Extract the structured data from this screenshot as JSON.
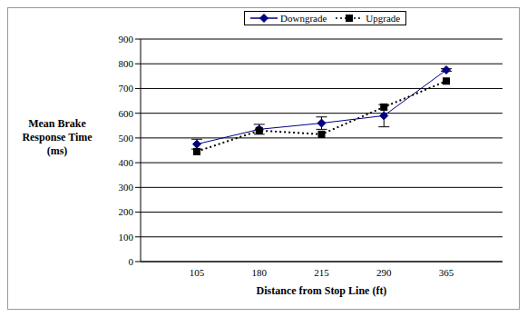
{
  "chart_data": {
    "type": "line",
    "x_label": "Distance from Stop Line (ft)",
    "y_label": "Mean Brake Response Time (ms)",
    "categories": [
      "105",
      "180",
      "215",
      "290",
      "365"
    ],
    "series": [
      {
        "name": "Downgrade",
        "color": "#000080",
        "marker": "diamond",
        "line_style": "solid",
        "values": [
          475,
          535,
          560,
          590,
          775
        ],
        "errors": [
          20,
          20,
          25,
          45,
          5
        ]
      },
      {
        "name": "Upgrade",
        "color": "#000000",
        "marker": "square",
        "line_style": "dotted",
        "values": [
          445,
          530,
          515,
          625,
          730
        ]
      }
    ],
    "ylim": [
      0,
      900
    ],
    "yticks": [
      0,
      100,
      200,
      300,
      400,
      500,
      600,
      700,
      800,
      900
    ],
    "grid": true,
    "legend": "top"
  }
}
